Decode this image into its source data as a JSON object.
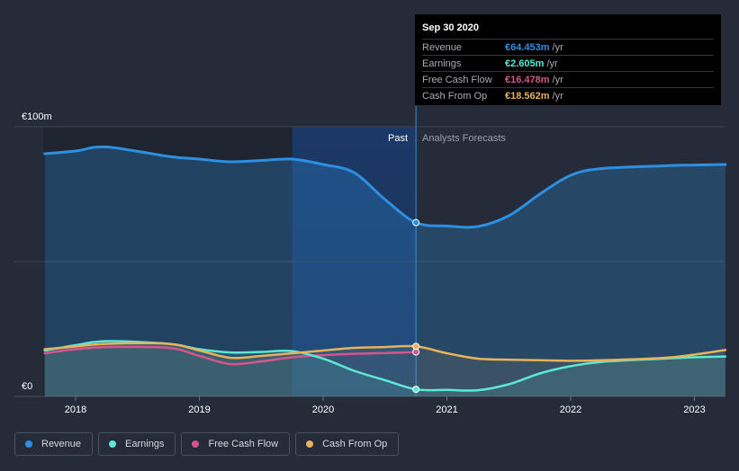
{
  "chart_data": {
    "type": "line",
    "title": "",
    "currency_axis": {
      "top_label": "€100m",
      "bottom_label": "€0"
    },
    "ylim": [
      0,
      100
    ],
    "xlim": [
      2017.75,
      2023.25
    ],
    "x_ticks": [
      "2018",
      "2019",
      "2020",
      "2021",
      "2022",
      "2023"
    ],
    "x_tick_values": [
      2018,
      2019,
      2020,
      2021,
      2022,
      2023
    ],
    "divider_x": 2020.75,
    "highlight_start_x": 2019.75,
    "past_label": "Past",
    "forecast_label": "Analysts Forecasts",
    "series": [
      {
        "key": "revenue",
        "name": "Revenue",
        "color": "#2d8fe1",
        "points": [
          [
            2017.75,
            90
          ],
          [
            2018.0,
            91
          ],
          [
            2018.25,
            92.5
          ],
          [
            2018.75,
            89
          ],
          [
            2019.0,
            88
          ],
          [
            2019.25,
            87
          ],
          [
            2019.5,
            87.5
          ],
          [
            2019.75,
            88
          ],
          [
            2020.0,
            86
          ],
          [
            2020.25,
            83
          ],
          [
            2020.5,
            73
          ],
          [
            2020.75,
            64.453
          ],
          [
            2021.0,
            63.2
          ],
          [
            2021.25,
            63
          ],
          [
            2021.5,
            67
          ],
          [
            2021.75,
            75
          ],
          [
            2022.0,
            82
          ],
          [
            2022.25,
            84.5
          ],
          [
            2022.75,
            85.5
          ],
          [
            2023.0,
            85.8
          ],
          [
            2023.25,
            86
          ]
        ]
      },
      {
        "key": "earnings",
        "name": "Earnings",
        "color": "#5ce8d5",
        "points": [
          [
            2017.75,
            17
          ],
          [
            2018.0,
            19
          ],
          [
            2018.25,
            20.5
          ],
          [
            2018.75,
            19.5
          ],
          [
            2019.0,
            17.5
          ],
          [
            2019.25,
            16.3
          ],
          [
            2019.5,
            16.5
          ],
          [
            2019.75,
            16.8
          ],
          [
            2020.0,
            14
          ],
          [
            2020.25,
            9.5
          ],
          [
            2020.5,
            6
          ],
          [
            2020.75,
            2.605
          ],
          [
            2021.0,
            2.4
          ],
          [
            2021.25,
            2.3
          ],
          [
            2021.5,
            4.5
          ],
          [
            2021.75,
            8.5
          ],
          [
            2022.0,
            11.2
          ],
          [
            2022.25,
            12.8
          ],
          [
            2022.75,
            14
          ],
          [
            2023.0,
            14.5
          ],
          [
            2023.25,
            14.8
          ]
        ]
      },
      {
        "key": "fcf",
        "name": "Free Cash Flow",
        "color": "#d6558f",
        "points": [
          [
            2017.75,
            16
          ],
          [
            2018.0,
            17.5
          ],
          [
            2018.25,
            18.3
          ],
          [
            2018.75,
            18
          ],
          [
            2019.0,
            15
          ],
          [
            2019.25,
            12
          ],
          [
            2019.5,
            13
          ],
          [
            2019.75,
            14.5
          ],
          [
            2020.0,
            15.3
          ],
          [
            2020.25,
            15.8
          ],
          [
            2020.5,
            16.1
          ],
          [
            2020.75,
            16.478
          ]
        ]
      },
      {
        "key": "cfo",
        "name": "Cash From Op",
        "color": "#e8b15a",
        "points": [
          [
            2017.75,
            17.5
          ],
          [
            2018.0,
            18.5
          ],
          [
            2018.25,
            19.5
          ],
          [
            2018.75,
            19.5
          ],
          [
            2019.0,
            17
          ],
          [
            2019.25,
            14.3
          ],
          [
            2019.5,
            15
          ],
          [
            2019.75,
            16
          ],
          [
            2020.0,
            17
          ],
          [
            2020.25,
            18
          ],
          [
            2020.5,
            18.3
          ],
          [
            2020.75,
            18.562
          ],
          [
            2021.0,
            16
          ],
          [
            2021.25,
            14
          ],
          [
            2021.5,
            13.6
          ],
          [
            2021.75,
            13.4
          ],
          [
            2022.0,
            13.2
          ],
          [
            2022.25,
            13.4
          ],
          [
            2022.75,
            14.3
          ],
          [
            2023.0,
            15.5
          ],
          [
            2023.25,
            17.2
          ]
        ]
      }
    ]
  },
  "tooltip": {
    "date": "Sep 30 2020",
    "rows": [
      {
        "label": "Revenue",
        "value": "€64.453m",
        "unit": "/yr",
        "color": "#2d8fe1"
      },
      {
        "label": "Earnings",
        "value": "€2.605m",
        "unit": "/yr",
        "color": "#5ce8d5"
      },
      {
        "label": "Free Cash Flow",
        "value": "€16.478m",
        "unit": "/yr",
        "color": "#d6558f"
      },
      {
        "label": "Cash From Op",
        "value": "€18.562m",
        "unit": "/yr",
        "color": "#e8b15a"
      }
    ]
  },
  "legend": [
    {
      "label": "Revenue",
      "color": "#2d8fe1"
    },
    {
      "label": "Earnings",
      "color": "#5ce8d5"
    },
    {
      "label": "Free Cash Flow",
      "color": "#d6558f"
    },
    {
      "label": "Cash From Op",
      "color": "#e8b15a"
    }
  ]
}
